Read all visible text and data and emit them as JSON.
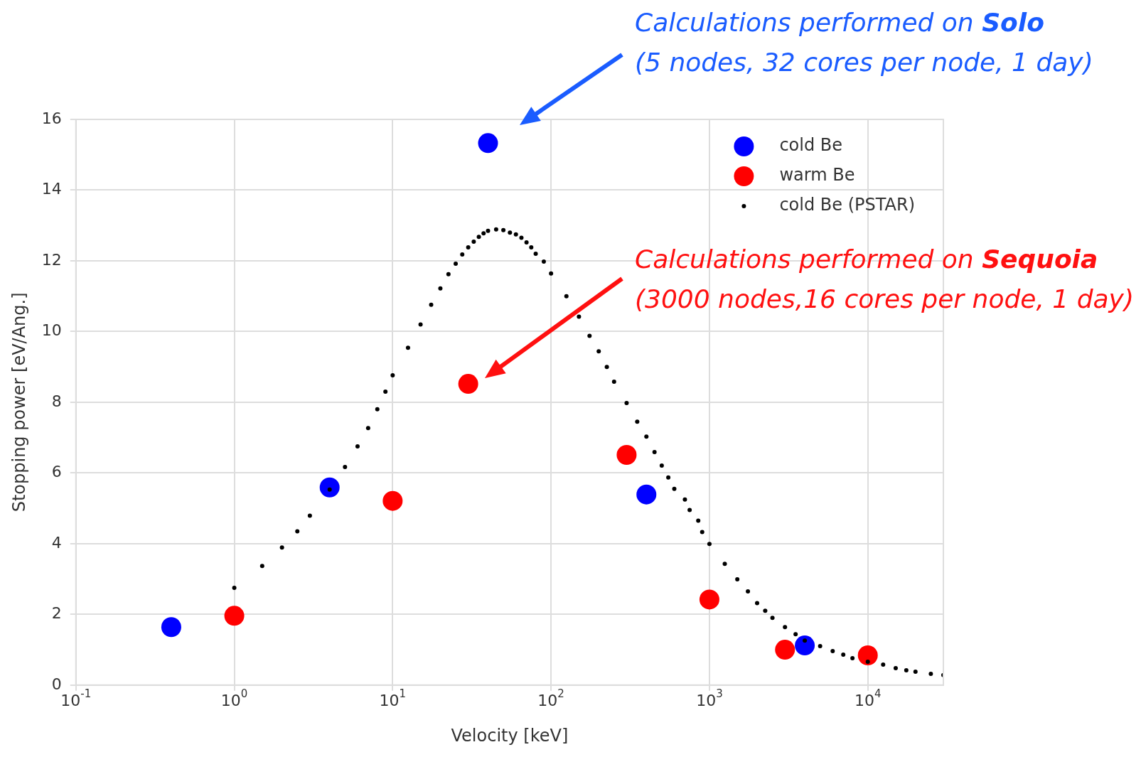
{
  "chart_data": {
    "type": "scatter",
    "xlabel": "Velocity [keV]",
    "ylabel": "Stopping power [eV/Ang.]",
    "log": "x",
    "xlim": [
      0.1,
      30000
    ],
    "ylim": [
      0,
      16
    ],
    "xticks": [
      {
        "value": 0.1,
        "label": "10$^{-1}$"
      },
      {
        "value": 1,
        "label": "10$^{0}$"
      },
      {
        "value": 10,
        "label": "10$^{1}$"
      },
      {
        "value": 100,
        "label": "10$^{2}$"
      },
      {
        "value": 1000,
        "label": "10$^{3}$"
      },
      {
        "value": 10000,
        "label": "10$^{4}$"
      }
    ],
    "yticks": [
      0,
      2,
      4,
      6,
      8,
      10,
      12,
      14,
      16
    ],
    "grid": true,
    "legend": "top right",
    "marker": "circle",
    "series": [
      {
        "name": "cold Be (PSTAR)",
        "color": "#000000",
        "x": [
          1,
          1.5,
          2,
          2.5,
          3,
          4,
          5,
          6,
          7,
          8,
          9,
          10,
          12.5,
          15,
          17.5,
          20,
          22.5,
          25,
          27.5,
          30,
          32.5,
          35,
          37.5,
          40,
          45,
          50,
          55,
          60,
          65,
          70,
          75,
          80,
          90,
          100,
          125,
          150,
          175,
          200,
          225,
          250,
          300,
          350,
          400,
          450,
          500,
          550,
          600,
          700,
          750,
          850,
          900,
          1000,
          1250,
          1500,
          1750,
          2000,
          2250,
          2500,
          3000,
          3500,
          4000,
          5000,
          6000,
          7000,
          8000,
          10000,
          12500,
          15000,
          17500,
          20000,
          25000,
          30000
        ],
        "values": [
          2.75,
          3.37,
          3.89,
          4.35,
          4.79,
          5.53,
          6.17,
          6.75,
          7.27,
          7.8,
          8.3,
          8.76,
          9.54,
          10.2,
          10.76,
          11.22,
          11.62,
          11.92,
          12.18,
          12.38,
          12.54,
          12.68,
          12.78,
          12.85,
          12.89,
          12.87,
          12.8,
          12.75,
          12.65,
          12.52,
          12.38,
          12.2,
          11.98,
          11.64,
          11.0,
          10.42,
          9.88,
          9.44,
          9.0,
          8.58,
          7.98,
          7.45,
          7.03,
          6.59,
          6.21,
          5.87,
          5.55,
          5.25,
          4.95,
          4.65,
          4.33,
          3.99,
          3.43,
          2.99,
          2.65,
          2.32,
          2.1,
          1.9,
          1.64,
          1.44,
          1.26,
          1.1,
          0.96,
          0.86,
          0.76,
          0.66,
          0.58,
          0.48,
          0.42,
          0.38,
          0.32,
          0.28
        ]
      },
      {
        "name": "cold Be",
        "color": "#0000ff",
        "x": [
          0.4,
          4,
          40,
          400,
          4000
        ],
        "values": [
          1.64,
          5.59,
          15.33,
          5.39,
          1.12
        ]
      },
      {
        "name": "warm Be",
        "color": "#ff0000",
        "x": [
          1,
          10,
          30,
          300,
          1000,
          3000,
          10000
        ],
        "values": [
          1.96,
          5.21,
          8.52,
          6.51,
          2.42,
          1.0,
          0.84
        ]
      }
    ],
    "annotations": [
      "Calculations performed on Solo\n(5 nodes, 32 cores per node, 1 day)",
      "Calculations performed on Sequoia\n(3000 nodes,16 cores per node, 1 day)"
    ]
  }
}
